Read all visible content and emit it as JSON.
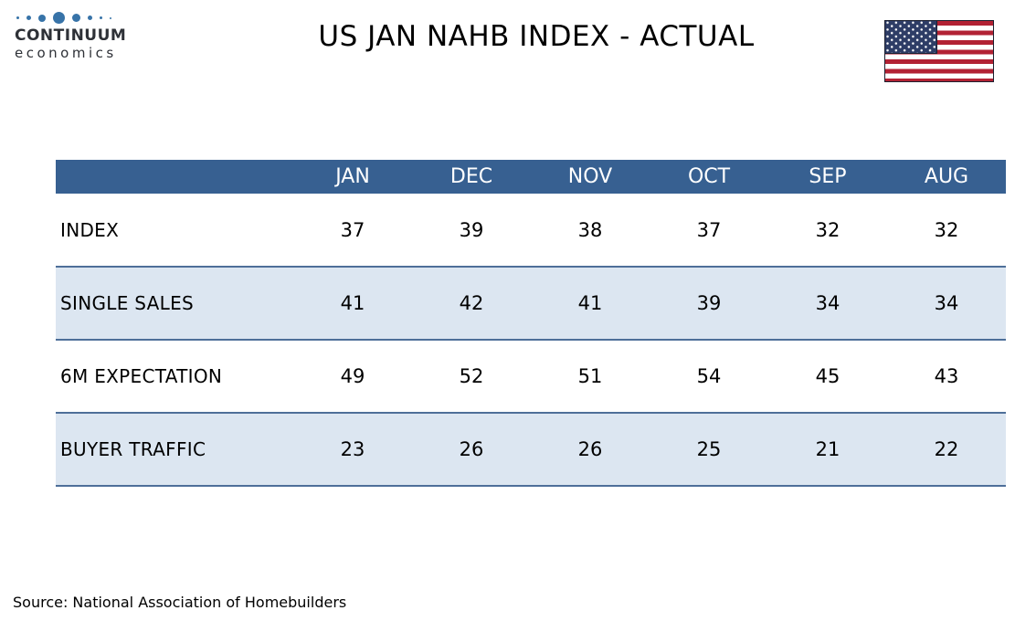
{
  "colors": {
    "header_bg": "#376091",
    "shaded_row_bg": "#dce6f1",
    "row_border": "#4e6f99",
    "logo_blue": "#3773a8",
    "flag_red": "#b22234",
    "flag_blue": "#2e3d66"
  },
  "logo": {
    "name": "CONTINUUM",
    "subname": "economics"
  },
  "chart_data": {
    "type": "table",
    "title": "US JAN NAHB INDEX - ACTUAL",
    "columns": [
      "JAN",
      "DEC",
      "NOV",
      "OCT",
      "SEP",
      "AUG"
    ],
    "series": [
      {
        "name": "INDEX",
        "values": [
          37,
          39,
          38,
          37,
          32,
          32
        ]
      },
      {
        "name": "SINGLE SALES",
        "values": [
          41,
          42,
          41,
          39,
          34,
          34
        ]
      },
      {
        "name": "6M EXPECTATION",
        "values": [
          49,
          52,
          51,
          54,
          45,
          43
        ]
      },
      {
        "name": "BUYER TRAFFIC",
        "values": [
          23,
          26,
          26,
          25,
          21,
          22
        ]
      }
    ],
    "source": "Source: National Association of Homebuilders"
  }
}
